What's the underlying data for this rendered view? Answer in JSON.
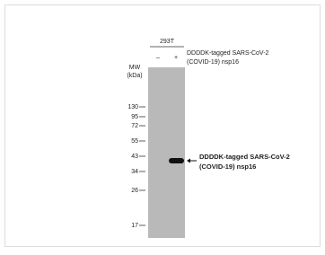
{
  "cell_line": "293T",
  "lanes": [
    "–",
    "+"
  ],
  "construct": [
    "DDDDK-tagged SARS-CoV-2",
    "(COVID-19) nsp16"
  ],
  "mw_label": [
    "MW",
    "(kDa)"
  ],
  "markers": [
    "130",
    "95",
    "72",
    "55",
    "43",
    "34",
    "26",
    "17"
  ],
  "band_label": [
    "DDDDK-tagged  SARS-CoV-2",
    "(COVID-19)  nsp16"
  ]
}
